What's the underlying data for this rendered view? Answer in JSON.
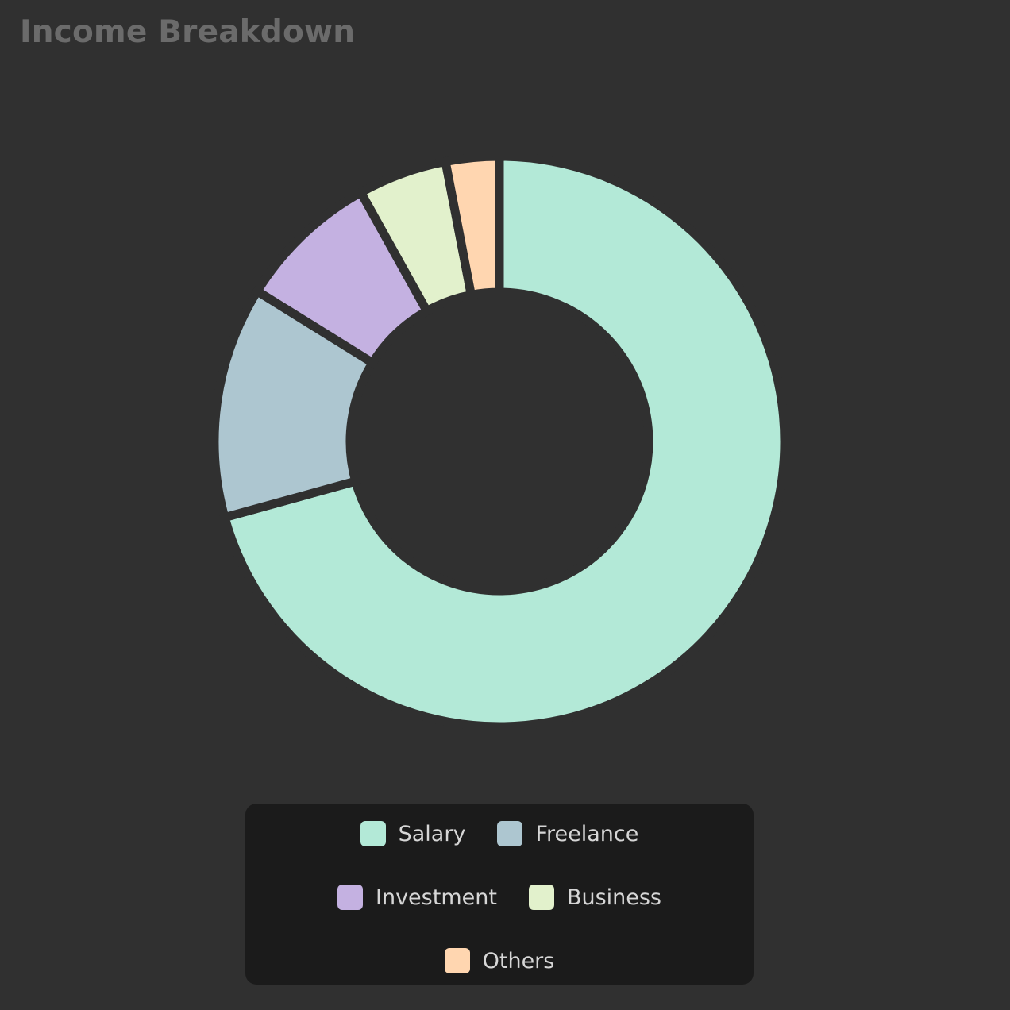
{
  "title": "Income Breakdown",
  "colors": {
    "background": "#303030",
    "legend_background": "#1b1b1b",
    "title_text": "#6b6b6b",
    "legend_text": "#d6d6d6"
  },
  "chart_data": {
    "type": "pie",
    "variant": "donut",
    "title": "Income Breakdown",
    "categories": [
      "Salary",
      "Freelance",
      "Investment",
      "Business",
      "Others"
    ],
    "values": [
      70,
      13,
      8,
      5,
      3
    ],
    "colors": [
      "#b3e9d7",
      "#adc6d0",
      "#c4b1e1",
      "#e2f1cc",
      "#ffd6b0"
    ],
    "legend_position": "bottom"
  },
  "legend": {
    "rows": [
      [
        {
          "label": "Salary",
          "color": "#b3e9d7"
        },
        {
          "label": "Freelance",
          "color": "#adc6d0"
        }
      ],
      [
        {
          "label": "Investment",
          "color": "#c4b1e1"
        },
        {
          "label": "Business",
          "color": "#e2f1cc"
        }
      ],
      [
        {
          "label": "Others",
          "color": "#ffd6b0"
        }
      ]
    ]
  }
}
